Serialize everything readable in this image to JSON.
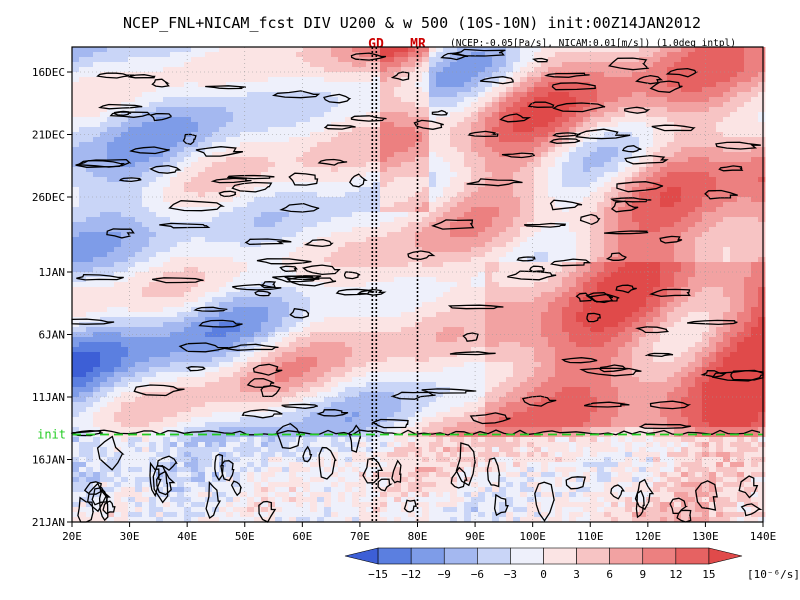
{
  "chart_data": {
    "type": "heatmap",
    "title": "NCEP_FNL+NICAM_fcst DIV U200 & w 500 (10S-10N) init:00Z14JAN2012",
    "subtitle": "(NCEP:-0.05[Pa/s], NICAM:0.01[m/s]) (1.0deg intpl)",
    "x_axis": {
      "range": [
        20,
        140
      ],
      "ticks": [
        20,
        30,
        40,
        50,
        60,
        70,
        80,
        90,
        100,
        110,
        120,
        130,
        140
      ],
      "tick_labels": [
        "20E",
        "30E",
        "40E",
        "50E",
        "60E",
        "70E",
        "80E",
        "90E",
        "100E",
        "110E",
        "120E",
        "130E",
        "140E"
      ]
    },
    "y_axis": {
      "range": [
        "2011-12-14",
        "2012-01-21"
      ],
      "ticks": [
        "2011-12-16",
        "2011-12-21",
        "2011-12-26",
        "2012-01-01",
        "2012-01-06",
        "2012-01-11",
        "2012-01-16",
        "2012-01-21"
      ],
      "tick_labels": [
        "16DEC",
        "21DEC",
        "26DEC",
        "1JAN",
        "6JAN",
        "11JAN",
        "16JAN",
        "21JAN"
      ],
      "reversed": true
    },
    "init_line": {
      "label": "init",
      "date": "2012-01-14",
      "color": "#22cc22"
    },
    "reference_lines": [
      {
        "label": "GD",
        "lon": 72.5,
        "color": "#cc0000"
      },
      {
        "label": "MR",
        "lon": 80,
        "color": "#cc0000"
      }
    ],
    "colorbar": {
      "levels": [
        -15,
        -12,
        -9,
        -6,
        -3,
        0,
        3,
        6,
        9,
        12,
        15
      ],
      "tick_labels": [
        "−15",
        "−12",
        "−9",
        "−6",
        "−3",
        "0",
        "3",
        "6",
        "9",
        "12",
        "15"
      ],
      "colors": [
        "#3d5fd6",
        "#5b7fe0",
        "#7e9ce8",
        "#a4b8f0",
        "#c9d5f7",
        "#eef0fb",
        "#fbe4e4",
        "#f7c4c4",
        "#f2a2a2",
        "#ec8080",
        "#e66262",
        "#e04a4a"
      ],
      "unit": "[10⁻⁶/s]"
    },
    "contour": {
      "quantity": "w 500",
      "color": "#000000"
    },
    "grid": true
  }
}
